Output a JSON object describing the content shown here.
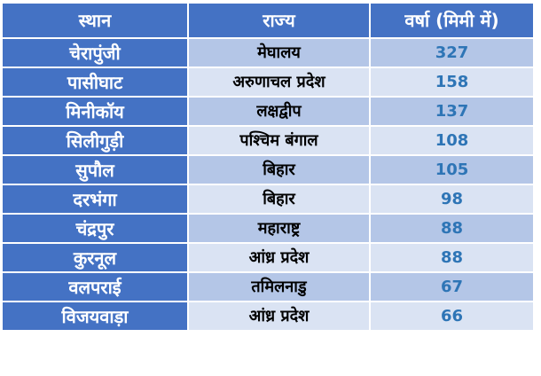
{
  "table": {
    "headers": [
      "स्थान",
      "राज्य",
      "वर्षा (मिमी में)"
    ],
    "rows": [
      {
        "place": "चेरापुंजी",
        "state": "मेघालय",
        "rainfall": "327"
      },
      {
        "place": "पासीघाट",
        "state": "अरुणाचल प्रदेश",
        "rainfall": "158"
      },
      {
        "place": "मिनीकॉय",
        "state": "लक्षद्वीप",
        "rainfall": "137"
      },
      {
        "place": "सिलीगुड़ी",
        "state": "पश्चिम बंगाल",
        "rainfall": "108"
      },
      {
        "place": "सुपौल",
        "state": "बिहार",
        "rainfall": "105"
      },
      {
        "place": "दरभंगा",
        "state": "बिहार",
        "rainfall": "98"
      },
      {
        "place": "चंद्रपुर",
        "state": "महाराष्ट्र",
        "rainfall": "88"
      },
      {
        "place": "कुरनूल",
        "state": "आंध्र प्रदेश",
        "rainfall": "88"
      },
      {
        "place": "वलपराई",
        "state": "तमिलनाडु",
        "rainfall": "67"
      },
      {
        "place": "विजयवाड़ा",
        "state": "आंध्र प्रदेश",
        "rainfall": "66"
      }
    ]
  },
  "colors": {
    "header_bg": "#4472c4",
    "row_dark": "#b4c6e7",
    "row_light": "#dae3f3",
    "value_text": "#2e75b6"
  }
}
